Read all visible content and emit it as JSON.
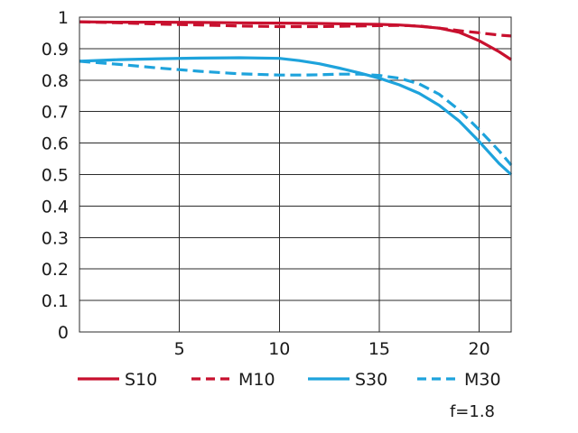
{
  "chart_data": {
    "type": "line",
    "title": "",
    "xlabel": "",
    "ylabel": "",
    "xlim": [
      0,
      21.6
    ],
    "ylim": [
      0,
      1
    ],
    "xticks": [
      5,
      10,
      15,
      20
    ],
    "yticks": [
      0,
      0.1,
      0.2,
      0.3,
      0.4,
      0.5,
      0.6,
      0.7,
      0.8,
      0.9,
      1
    ],
    "ytick_labels": [
      "0",
      "0.1",
      "0.2",
      "0.3",
      "0.4",
      "0.5",
      "0.6",
      "0.7",
      "0.8",
      "0.9",
      "1"
    ],
    "xtick_labels": [
      "5",
      "10",
      "15",
      "20"
    ],
    "grid": true,
    "legend_position": "bottom",
    "annotation": "f=1.8",
    "series": [
      {
        "name": "S10",
        "color": "#c8102e",
        "dash": "solid",
        "x": [
          0,
          2,
          4,
          6,
          8,
          10,
          12,
          14,
          15,
          16,
          17,
          18,
          19,
          20,
          21,
          21.6
        ],
        "y": [
          0.985,
          0.984,
          0.984,
          0.983,
          0.982,
          0.981,
          0.98,
          0.978,
          0.977,
          0.975,
          0.971,
          0.965,
          0.952,
          0.925,
          0.89,
          0.865
        ]
      },
      {
        "name": "M10",
        "color": "#c8102e",
        "dash": "dashed",
        "x": [
          0,
          2,
          4,
          6,
          8,
          10,
          12,
          14,
          15,
          16,
          17,
          18,
          19,
          20,
          21,
          21.6
        ],
        "y": [
          0.985,
          0.982,
          0.978,
          0.975,
          0.972,
          0.97,
          0.97,
          0.972,
          0.973,
          0.974,
          0.972,
          0.965,
          0.957,
          0.95,
          0.943,
          0.94
        ]
      },
      {
        "name": "S30",
        "color": "#1ea3dc",
        "dash": "solid",
        "x": [
          0,
          2,
          4,
          6,
          8,
          10,
          11,
          12,
          13,
          14,
          15,
          16,
          17,
          18,
          19,
          20,
          21,
          21.6
        ],
        "y": [
          0.86,
          0.865,
          0.868,
          0.87,
          0.871,
          0.869,
          0.862,
          0.852,
          0.838,
          0.823,
          0.806,
          0.785,
          0.758,
          0.72,
          0.67,
          0.605,
          0.535,
          0.5
        ]
      },
      {
        "name": "M30",
        "color": "#1ea3dc",
        "dash": "dashed",
        "x": [
          0,
          2,
          4,
          6,
          8,
          10,
          11,
          12,
          13,
          14,
          15,
          16,
          17,
          18,
          19,
          20,
          21,
          21.6
        ],
        "y": [
          0.86,
          0.85,
          0.838,
          0.828,
          0.82,
          0.816,
          0.816,
          0.817,
          0.819,
          0.819,
          0.815,
          0.806,
          0.788,
          0.755,
          0.705,
          0.642,
          0.575,
          0.53
        ]
      }
    ]
  }
}
